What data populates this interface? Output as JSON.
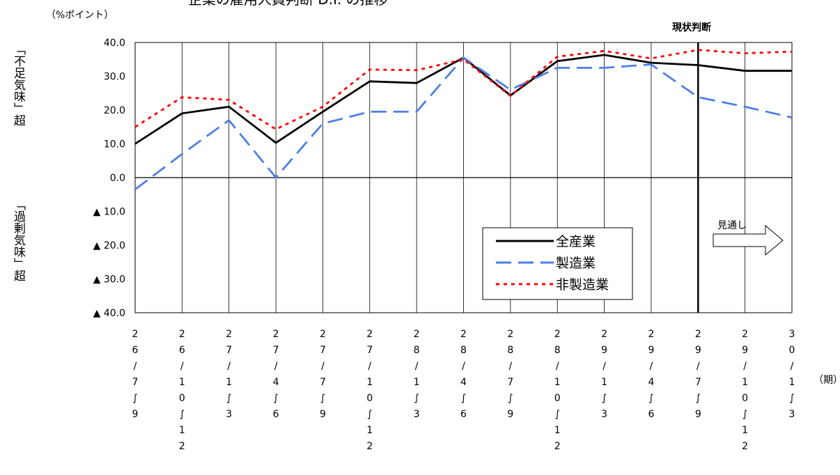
{
  "chart_data": {
    "type": "line",
    "title_partial": "企業の雇用人員判断 D.I. の推移",
    "unit_label": "（%ポイント）",
    "y_label_positive": "「不足気味」超",
    "y_label_negative": "「過剰気味」超",
    "x_unit_label": "（期）",
    "current_marker_label": "現状判断",
    "forecast_label": "見通し",
    "ylim": [
      -40,
      40
    ],
    "y_ticks": [
      {
        "value": 40,
        "label": "40.0"
      },
      {
        "value": 30,
        "label": "30.0"
      },
      {
        "value": 20,
        "label": "20.0"
      },
      {
        "value": 10,
        "label": "10.0"
      },
      {
        "value": 0,
        "label": "0.0"
      },
      {
        "value": -10,
        "label": "▲ 10.0"
      },
      {
        "value": -20,
        "label": "▲ 20.0"
      },
      {
        "value": -30,
        "label": "▲ 30.0"
      },
      {
        "value": -40,
        "label": "▲ 40.0"
      }
    ],
    "categories": [
      [
        "2",
        "6",
        "/",
        "7",
        "∫",
        "9"
      ],
      [
        "2",
        "6",
        "/",
        "1",
        "0",
        "∫",
        "1",
        "2"
      ],
      [
        "2",
        "7",
        "/",
        "1",
        "∫",
        "3"
      ],
      [
        "2",
        "7",
        "/",
        "4",
        "∫",
        "6"
      ],
      [
        "2",
        "7",
        "/",
        "7",
        "∫",
        "9"
      ],
      [
        "2",
        "7",
        "/",
        "1",
        "0",
        "∫",
        "1",
        "2"
      ],
      [
        "2",
        "8",
        "/",
        "1",
        "∫",
        "3"
      ],
      [
        "2",
        "8",
        "/",
        "4",
        "∫",
        "6"
      ],
      [
        "2",
        "8",
        "/",
        "7",
        "∫",
        "9"
      ],
      [
        "2",
        "8",
        "/",
        "1",
        "0",
        "∫",
        "1",
        "2"
      ],
      [
        "2",
        "9",
        "/",
        "1",
        "∫",
        "3"
      ],
      [
        "2",
        "9",
        "/",
        "4",
        "∫",
        "6"
      ],
      [
        "2",
        "9",
        "/",
        "7",
        "∫",
        "9"
      ],
      [
        "2",
        "9",
        "/",
        "1",
        "0",
        "∫",
        "1",
        "2"
      ],
      [
        "3",
        "0",
        "/",
        "1",
        "∫",
        "3"
      ]
    ],
    "current_index": 12,
    "series": [
      {
        "name": "全産業",
        "color": "#000000",
        "style": "solid",
        "values": [
          10.0,
          19.0,
          21.0,
          10.3,
          19.5,
          28.5,
          28.0,
          35.5,
          24.3,
          34.5,
          36.3,
          34.0,
          33.3,
          31.6,
          31.6
        ]
      },
      {
        "name": "製造業",
        "color": "#4d7fe8",
        "style": "dash",
        "values": [
          -3.5,
          7.0,
          17.0,
          0.0,
          16.0,
          19.5,
          19.5,
          35.5,
          26.0,
          32.5,
          32.5,
          33.5,
          23.8,
          21.0,
          17.8
        ]
      },
      {
        "name": "非製造業",
        "color": "#ff0000",
        "style": "dot",
        "values": [
          15.0,
          23.8,
          23.0,
          14.3,
          21.0,
          32.0,
          31.8,
          35.0,
          24.2,
          35.8,
          37.5,
          35.3,
          37.8,
          36.8,
          37.3
        ]
      }
    ]
  }
}
